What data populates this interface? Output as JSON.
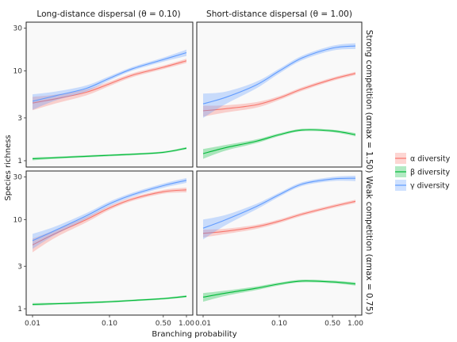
{
  "colors": {
    "alpha": "#F8766D",
    "beta": "#00BA38",
    "gamma": "#619CFF",
    "panel_bg": "#F9F9F9"
  },
  "strips": {
    "col_labels": [
      "Long-distance dispersal (θ = 0.10)",
      "Short-distance dispersal (θ = 1.00)"
    ],
    "row_labels": [
      "Strong competition (αmax = 1.50)",
      "Weak competition (αmax = 0.75)"
    ]
  },
  "chart_data": {
    "type": "line",
    "xlabel": "Branching probability",
    "ylabel": "Species richness",
    "x_scale": "log",
    "y_scale": "log",
    "xlim": [
      0.01,
      1.0
    ],
    "ylim": [
      0.85,
      35
    ],
    "x_ticks": [
      0.01,
      0.1,
      0.5,
      1.0
    ],
    "x_tick_labels": [
      "0.01",
      "0.10",
      "0.50",
      "1.00"
    ],
    "y_ticks": [
      1,
      3,
      10,
      30
    ],
    "y_tick_labels": [
      "1",
      "3",
      "10",
      "30"
    ],
    "legend": {
      "position": "right",
      "entries": [
        {
          "key": "alpha",
          "label": "α diversity"
        },
        {
          "key": "beta",
          "label": "β diversity"
        },
        {
          "key": "gamma",
          "label": "γ diversity"
        }
      ]
    },
    "x": [
      0.01,
      0.02,
      0.05,
      0.1,
      0.2,
      0.5,
      1.0
    ],
    "panels": [
      {
        "row": 0,
        "col": 0,
        "series": [
          {
            "key": "alpha",
            "values": [
              4.4,
              4.9,
              5.8,
              7.2,
              9.0,
              11.0,
              13.0
            ],
            "band": [
              0.75,
              0.55,
              0.45,
              0.4,
              0.45,
              0.5,
              0.7
            ]
          },
          {
            "key": "beta",
            "values": [
              1.05,
              1.08,
              1.12,
              1.15,
              1.18,
              1.24,
              1.38
            ],
            "band": [
              0.04,
              0.03,
              0.03,
              0.03,
              0.03,
              0.03,
              0.04
            ]
          },
          {
            "key": "gamma",
            "values": [
              4.6,
              5.3,
              6.4,
              8.3,
              10.6,
              13.4,
              16.0
            ],
            "band": [
              0.9,
              0.6,
              0.5,
              0.45,
              0.5,
              0.7,
              1.3
            ]
          }
        ]
      },
      {
        "row": 0,
        "col": 1,
        "series": [
          {
            "key": "alpha",
            "values": [
              3.6,
              3.8,
              4.2,
              5.0,
              6.3,
              8.1,
              9.4
            ],
            "band": [
              0.5,
              0.35,
              0.3,
              0.25,
              0.3,
              0.35,
              0.4
            ]
          },
          {
            "key": "beta",
            "values": [
              1.2,
              1.4,
              1.65,
              1.95,
              2.2,
              2.15,
              1.95
            ],
            "band": [
              0.15,
              0.1,
              0.08,
              0.07,
              0.07,
              0.07,
              0.08
            ]
          },
          {
            "key": "gamma",
            "values": [
              4.3,
              5.1,
              7.0,
              10.0,
              14.0,
              18.0,
              19.0
            ],
            "band": [
              1.3,
              0.8,
              0.6,
              0.6,
              0.8,
              1.1,
              1.4
            ]
          }
        ]
      },
      {
        "row": 1,
        "col": 0,
        "series": [
          {
            "key": "alpha",
            "values": [
              5.2,
              7.0,
              10.0,
              13.5,
              17.0,
              20.5,
              21.5
            ],
            "band": [
              0.9,
              0.7,
              0.7,
              0.7,
              0.8,
              1.0,
              1.3
            ]
          },
          {
            "key": "beta",
            "values": [
              1.12,
              1.14,
              1.17,
              1.2,
              1.24,
              1.3,
              1.38
            ],
            "band": [
              0.04,
              0.03,
              0.03,
              0.03,
              0.03,
              0.03,
              0.04
            ]
          },
          {
            "key": "gamma",
            "values": [
              5.8,
              7.6,
              11.0,
              15.0,
              19.0,
              24.0,
              27.5
            ],
            "band": [
              1.1,
              0.8,
              0.8,
              0.9,
              1.0,
              1.3,
              1.7
            ]
          }
        ]
      },
      {
        "row": 1,
        "col": 1,
        "series": [
          {
            "key": "alpha",
            "values": [
              7.0,
              7.4,
              8.3,
              9.6,
              11.5,
              14.0,
              16.0
            ],
            "band": [
              0.7,
              0.5,
              0.45,
              0.45,
              0.5,
              0.6,
              0.7
            ]
          },
          {
            "key": "beta",
            "values": [
              1.35,
              1.5,
              1.7,
              1.9,
              2.05,
              2.0,
              1.9
            ],
            "band": [
              0.15,
              0.1,
              0.08,
              0.07,
              0.07,
              0.07,
              0.08
            ]
          },
          {
            "key": "gamma",
            "values": [
              8.0,
              10.0,
              14.0,
              19.0,
              25.0,
              28.5,
              29.0
            ],
            "band": [
              2.0,
              1.3,
              1.0,
              1.0,
              1.2,
              1.5,
              2.0
            ]
          }
        ]
      }
    ]
  }
}
